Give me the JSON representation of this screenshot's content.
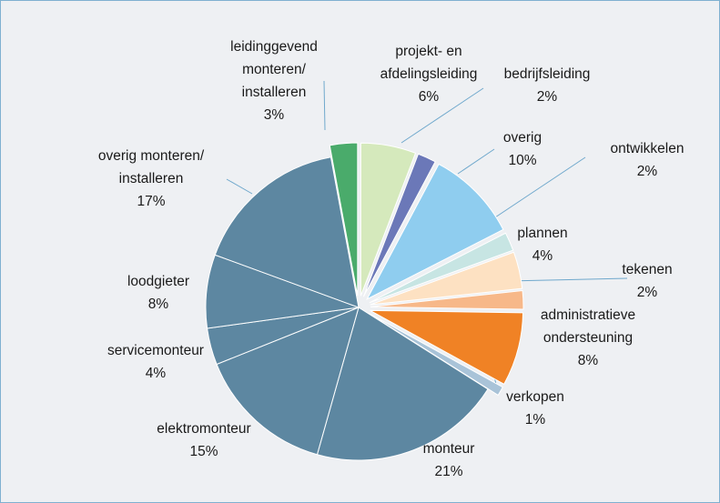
{
  "chart_data": {
    "type": "pie",
    "categories": [
      "projekt- en\nafdelingsleiding",
      "bedrijfsleiding",
      "overig",
      "ontwikkelen",
      "plannen",
      "tekenen",
      "administratieve\nondersteuning",
      "verkopen",
      "monteur",
      "elektromonteur",
      "servicemonteur",
      "loodgieter",
      "overig monteren/\ninstalleren",
      "leidinggevend\nmonteren/\ninstalleren"
    ],
    "values": [
      6,
      2,
      10,
      2,
      4,
      2,
      8,
      1,
      21,
      15,
      4,
      8,
      17,
      3
    ],
    "value_labels": [
      "6%",
      "2%",
      "10%",
      "2%",
      "4%",
      "2%",
      "8%",
      "1%",
      "21%",
      "15%",
      "4%",
      "8%",
      "17%",
      "3%"
    ],
    "colors": [
      "#d5e9bc",
      "#6b78b8",
      "#8fcdef",
      "#c7e5e3",
      "#fde1c2",
      "#f7b889",
      "#f08225",
      "#a9c3d8",
      "#5d87a1",
      "#5d87a1",
      "#5d87a1",
      "#5d87a1",
      "#5d87a1",
      "#4aab6b"
    ],
    "exploded": [
      true,
      true,
      true,
      true,
      true,
      true,
      true,
      true,
      false,
      false,
      false,
      false,
      false,
      true
    ]
  }
}
